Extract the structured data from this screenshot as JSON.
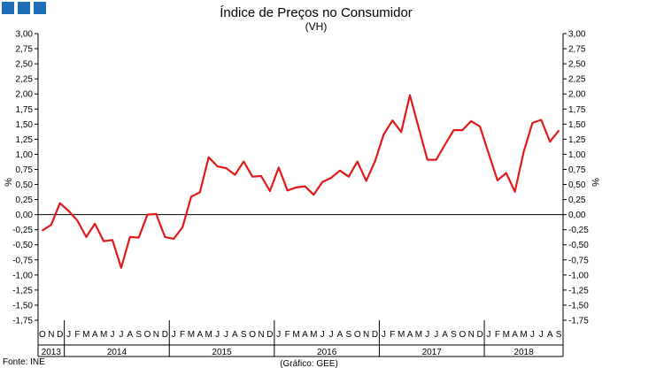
{
  "chart_data": {
    "type": "line",
    "title": "Índice de Preços no Consumidor",
    "subtitle": "(VH)",
    "ylabel_left": "%",
    "ylabel_right": "%",
    "source": "Fonte: INE",
    "credit": "(Gráfico: GEE)",
    "ylim": [
      -1.75,
      3.0
    ],
    "y_ticks": [
      "3,00",
      "2,75",
      "2,50",
      "2,25",
      "2,00",
      "1,75",
      "1,50",
      "1,25",
      "1,00",
      "0,75",
      "0,50",
      "0,25",
      "0,00",
      "-0,25",
      "-0,50",
      "-0,75",
      "-1,00",
      "-1,25",
      "-1,50",
      "-1,75"
    ],
    "y_tick_values": [
      3.0,
      2.75,
      2.5,
      2.25,
      2.0,
      1.75,
      1.5,
      1.25,
      1.0,
      0.75,
      0.5,
      0.25,
      0.0,
      -0.25,
      -0.5,
      -0.75,
      -1.0,
      -1.25,
      -1.5,
      -1.75
    ],
    "month_labels": [
      "O",
      "N",
      "D",
      "J",
      "F",
      "M",
      "A",
      "M",
      "J",
      "J",
      "A",
      "S",
      "O",
      "N",
      "D",
      "J",
      "F",
      "M",
      "A",
      "M",
      "J",
      "J",
      "A",
      "S",
      "O",
      "N",
      "D",
      "J",
      "F",
      "M",
      "A",
      "M",
      "J",
      "J",
      "A",
      "S",
      "O",
      "N",
      "D",
      "J",
      "F",
      "M",
      "A",
      "M",
      "J",
      "J",
      "A",
      "S",
      "O",
      "N",
      "D",
      "J",
      "F",
      "M",
      "A",
      "M",
      "J",
      "J",
      "A",
      "S"
    ],
    "years": [
      {
        "label": "2013",
        "start": 0,
        "count": 3
      },
      {
        "label": "2014",
        "start": 3,
        "count": 12
      },
      {
        "label": "2015",
        "start": 15,
        "count": 12
      },
      {
        "label": "2016",
        "start": 27,
        "count": 12
      },
      {
        "label": "2017",
        "start": 39,
        "count": 12
      },
      {
        "label": "2018",
        "start": 51,
        "count": 9
      }
    ],
    "series": [
      {
        "color": "#e0191b",
        "values": [
          -0.26,
          -0.17,
          0.19,
          0.06,
          -0.1,
          -0.37,
          -0.15,
          -0.44,
          -0.42,
          -0.88,
          -0.37,
          -0.38,
          0.0,
          0.01,
          -0.37,
          -0.4,
          -0.21,
          0.3,
          0.37,
          0.95,
          0.8,
          0.77,
          0.66,
          0.88,
          0.63,
          0.64,
          0.39,
          0.78,
          0.4,
          0.45,
          0.47,
          0.33,
          0.54,
          0.61,
          0.73,
          0.63,
          0.88,
          0.56,
          0.88,
          1.33,
          1.56,
          1.37,
          1.98,
          1.44,
          0.91,
          0.91,
          1.16,
          1.4,
          1.4,
          1.55,
          1.46,
          1.01,
          0.57,
          0.69,
          0.38,
          1.04,
          1.52,
          1.57,
          1.21,
          1.39
        ]
      }
    ]
  }
}
